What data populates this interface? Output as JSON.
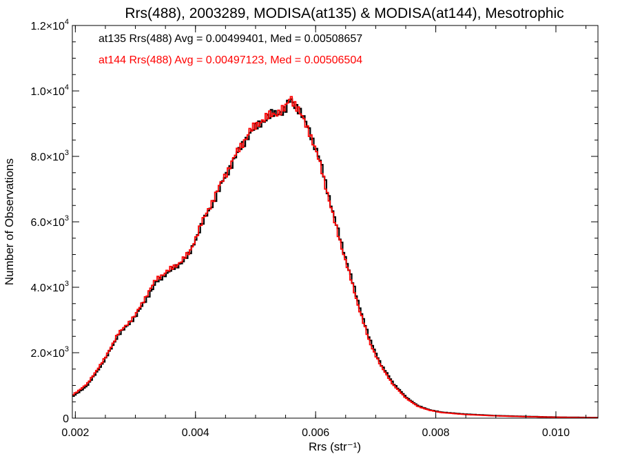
{
  "chart_data": {
    "type": "line",
    "title": "Rrs(488), 2003289, MODISA(at135) & MODISA(at144), Mesotrophic",
    "xlabel": "Rrs (str⁻¹)",
    "ylabel": "Number of Observations",
    "xlim": [
      0.00195,
      0.0107
    ],
    "ylim": [
      0,
      12000
    ],
    "x_ticks": [
      {
        "value": 0.002,
        "label": "0.002"
      },
      {
        "value": 0.004,
        "label": "0.004"
      },
      {
        "value": 0.006,
        "label": "0.006"
      },
      {
        "value": 0.008,
        "label": "0.008"
      },
      {
        "value": 0.01,
        "label": "0.010"
      }
    ],
    "y_ticks": [
      {
        "value": 0,
        "mant": "0",
        "exp": ""
      },
      {
        "value": 2000,
        "mant": "2.0×10",
        "exp": "3"
      },
      {
        "value": 4000,
        "mant": "4.0×10",
        "exp": "3"
      },
      {
        "value": 6000,
        "mant": "6.0×10",
        "exp": "3"
      },
      {
        "value": 8000,
        "mant": "8.0×10",
        "exp": "3"
      },
      {
        "value": 10000,
        "mant": "1.0×10",
        "exp": "4"
      },
      {
        "value": 12000,
        "mant": "1.2×10",
        "exp": "4"
      }
    ],
    "grid": false,
    "legend_placement": "top-left",
    "series": [
      {
        "label": "at135 Rrs(488) Avg = 0.00499401, Med = 0.00508657",
        "color": "#000000",
        "step": true,
        "x": [
          0.00195,
          0.0022,
          0.0025,
          0.0027,
          0.003,
          0.0032,
          0.00335,
          0.0035,
          0.0037,
          0.0039,
          0.0041,
          0.0043,
          0.0045,
          0.0047,
          0.0049,
          0.0051,
          0.0053,
          0.0055,
          0.00558,
          0.0057,
          0.0059,
          0.0061,
          0.0063,
          0.0065,
          0.0067,
          0.0069,
          0.0071,
          0.0073,
          0.0075,
          0.0077,
          0.0079,
          0.0081,
          0.0085,
          0.009,
          0.0095,
          0.01,
          0.0107
        ],
        "y": [
          650,
          1000,
          1800,
          2500,
          3100,
          3700,
          4150,
          4400,
          4650,
          5000,
          5900,
          6600,
          7400,
          8100,
          8700,
          9050,
          9300,
          9400,
          9750,
          9500,
          8800,
          7700,
          6200,
          4900,
          3600,
          2400,
          1600,
          1050,
          650,
          380,
          250,
          180,
          120,
          75,
          50,
          30,
          15
        ]
      },
      {
        "label": "at144 Rrs(488) Avg = 0.00497123, Med = 0.00506504",
        "color": "#ff0000",
        "step": true,
        "x": [
          0.00195,
          0.0022,
          0.0025,
          0.0027,
          0.003,
          0.0032,
          0.00335,
          0.0035,
          0.0037,
          0.0039,
          0.0041,
          0.0043,
          0.0045,
          0.0047,
          0.0049,
          0.0051,
          0.0053,
          0.0055,
          0.00558,
          0.0057,
          0.0059,
          0.0061,
          0.0063,
          0.0065,
          0.0067,
          0.0069,
          0.0071,
          0.0073,
          0.0075,
          0.0077,
          0.0079,
          0.0081,
          0.0085,
          0.009,
          0.0095,
          0.01,
          0.0107
        ],
        "y": [
          700,
          1050,
          1850,
          2550,
          3150,
          3800,
          4250,
          4450,
          4700,
          5050,
          5950,
          6700,
          7450,
          8150,
          8750,
          9100,
          9300,
          9450,
          9850,
          9450,
          8750,
          7600,
          6100,
          4800,
          3500,
          2300,
          1550,
          1000,
          620,
          360,
          240,
          170,
          110,
          70,
          45,
          28,
          12
        ]
      }
    ]
  }
}
